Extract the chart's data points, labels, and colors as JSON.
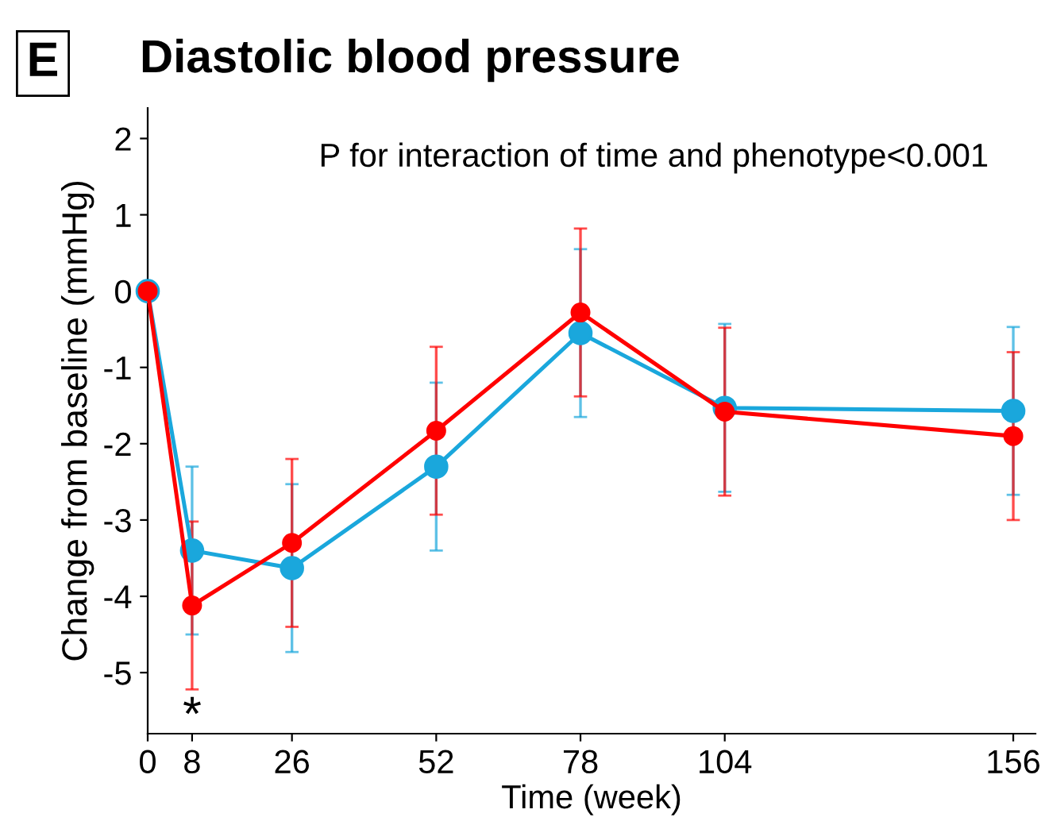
{
  "chart_data": {
    "type": "line",
    "title": "Diastolic blood pressure",
    "xlabel": "Time (week)",
    "ylabel": "Change from baseline (mmHg)",
    "annotations": [
      "E",
      "P for interaction of time and phenotype<0.001",
      "*"
    ],
    "x": [
      0,
      8,
      26,
      52,
      78,
      104,
      156
    ],
    "series": [
      {
        "color": "#1aa7dc",
        "values": [
          0,
          -3.4,
          -3.63,
          -2.3,
          -0.55,
          -1.53,
          -1.57
        ],
        "errors": [
          null,
          1.1,
          1.1,
          1.1,
          1.1,
          1.1,
          1.1
        ]
      },
      {
        "color": "#ff0000",
        "values": [
          0,
          -4.12,
          -3.3,
          -1.83,
          -0.28,
          -1.58,
          -1.9
        ],
        "errors": [
          null,
          1.1,
          1.1,
          1.1,
          1.1,
          1.1,
          1.1
        ]
      }
    ],
    "xlim": [
      0,
      160
    ],
    "ylim": [
      -5.8,
      2.4
    ],
    "xticks": [
      0,
      8,
      26,
      52,
      78,
      104,
      156
    ],
    "yticks": [
      2,
      1,
      0,
      -1,
      -2,
      -3,
      -4,
      -5
    ],
    "marker": "circle",
    "line_style": "solid",
    "grid": false,
    "legend": false
  }
}
